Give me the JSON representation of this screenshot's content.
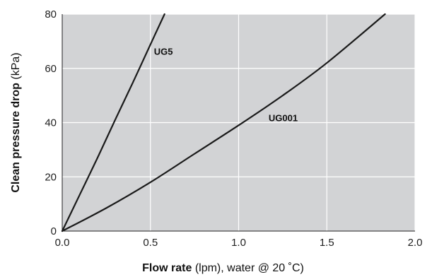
{
  "chart_data": {
    "type": "line",
    "title": "",
    "xlabel": {
      "bold": "Flow rate",
      "rest": " (lpm), water @ 20 ˚C)"
    },
    "ylabel": {
      "bold": "Clean pressure drop",
      "rest": " (kPa)"
    },
    "xlim": [
      0,
      2.0
    ],
    "ylim": [
      0,
      80
    ],
    "x_ticks": [
      0.0,
      0.5,
      1.0,
      1.5,
      2.0
    ],
    "x_tick_labels": [
      "0.0",
      "0.5",
      "1.0",
      "1.5",
      "2.0"
    ],
    "y_ticks": [
      0,
      20,
      40,
      60,
      80
    ],
    "y_tick_labels": [
      "0",
      "20",
      "40",
      "60",
      "80"
    ],
    "grid": true,
    "legend": "none (series labeled inline on the curves)",
    "colors": {
      "plot_background": "#d2d3d5",
      "grid": "#ffffff",
      "line": "#1a1a1a",
      "text": "#111111"
    },
    "series": [
      {
        "name": "UG5",
        "x": [
          0.0,
          0.1,
          0.2,
          0.3,
          0.4,
          0.5,
          0.58
        ],
        "y": [
          0.0,
          13.5,
          27.0,
          41.0,
          54.7,
          68.8,
          80.0
        ]
      },
      {
        "name": "UG001",
        "x": [
          0.0,
          0.25,
          0.5,
          0.75,
          1.0,
          1.25,
          1.5,
          1.83
        ],
        "y": [
          0.0,
          8.5,
          18.0,
          28.5,
          39.0,
          50.0,
          62.0,
          80.0
        ]
      }
    ]
  }
}
